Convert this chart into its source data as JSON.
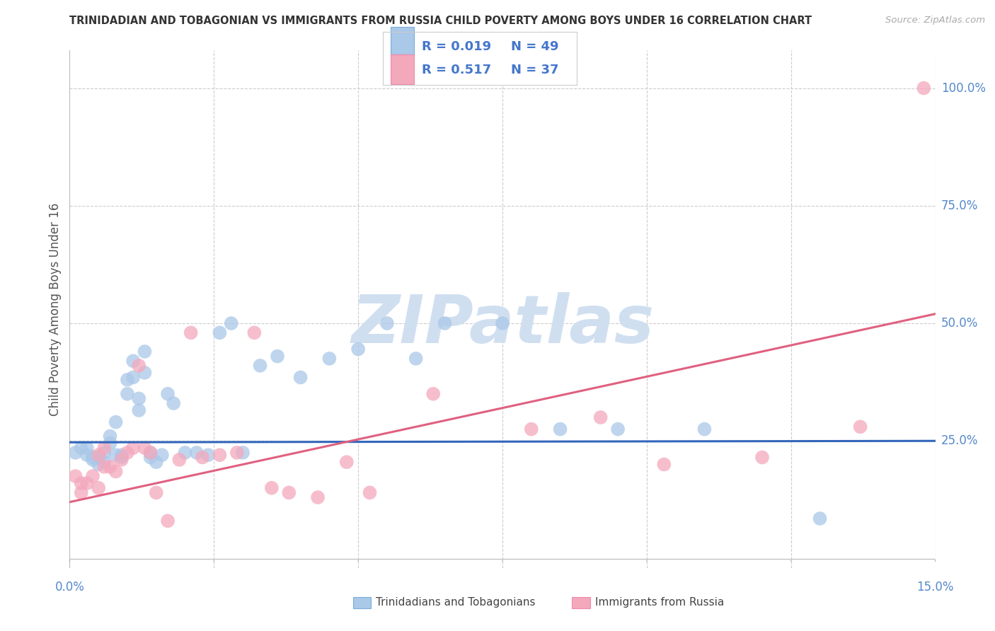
{
  "title": "TRINIDADIAN AND TOBAGONIAN VS IMMIGRANTS FROM RUSSIA CHILD POVERTY AMONG BOYS UNDER 16 CORRELATION CHART",
  "source": "Source: ZipAtlas.com",
  "ylabel": "Child Poverty Among Boys Under 16",
  "xlim": [
    0.0,
    0.15
  ],
  "ylim": [
    -0.02,
    1.08
  ],
  "ytick_vals": [
    0.0,
    0.25,
    0.5,
    0.75,
    1.0
  ],
  "ytick_labels": [
    "",
    "25.0%",
    "50.0%",
    "75.0%",
    "100.0%"
  ],
  "xtick_vals": [
    0.0,
    0.025,
    0.05,
    0.075,
    0.1,
    0.125,
    0.15
  ],
  "xtick_labels": [
    "0.0%",
    "",
    "",
    "",
    "",
    "",
    "15.0%"
  ],
  "legend_r_blue": "0.019",
  "legend_n_blue": "49",
  "legend_r_pink": "0.517",
  "legend_n_pink": "37",
  "blue_color": "#aac8e8",
  "blue_edge_color": "#7aadda",
  "pink_color": "#f4a8bc",
  "pink_edge_color": "#ee8aaa",
  "line_blue_color": "#3366bb",
  "line_pink_color": "#e06080",
  "watermark_color": "#d0dff0",
  "background_color": "#ffffff",
  "grid_color": "#cccccc",
  "title_color": "#333333",
  "source_color": "#aaaaaa",
  "axis_label_color": "#555555",
  "tick_label_color": "#5588cc",
  "legend_text_color": "#4477cc",
  "blue_scatter_x": [
    0.001,
    0.002,
    0.003,
    0.003,
    0.004,
    0.004,
    0.005,
    0.005,
    0.006,
    0.006,
    0.007,
    0.007,
    0.008,
    0.008,
    0.009,
    0.009,
    0.01,
    0.01,
    0.011,
    0.011,
    0.012,
    0.012,
    0.013,
    0.013,
    0.014,
    0.014,
    0.015,
    0.016,
    0.017,
    0.018,
    0.02,
    0.022,
    0.024,
    0.026,
    0.028,
    0.03,
    0.033,
    0.036,
    0.04,
    0.045,
    0.05,
    0.055,
    0.06,
    0.065,
    0.075,
    0.085,
    0.095,
    0.11,
    0.13
  ],
  "blue_scatter_y": [
    0.225,
    0.235,
    0.235,
    0.22,
    0.215,
    0.21,
    0.215,
    0.2,
    0.225,
    0.205,
    0.26,
    0.245,
    0.29,
    0.22,
    0.215,
    0.22,
    0.38,
    0.35,
    0.42,
    0.385,
    0.34,
    0.315,
    0.44,
    0.395,
    0.225,
    0.215,
    0.205,
    0.22,
    0.35,
    0.33,
    0.225,
    0.225,
    0.22,
    0.48,
    0.5,
    0.225,
    0.41,
    0.43,
    0.385,
    0.425,
    0.445,
    0.5,
    0.425,
    0.5,
    0.5,
    0.275,
    0.275,
    0.275,
    0.085
  ],
  "pink_scatter_x": [
    0.001,
    0.002,
    0.002,
    0.003,
    0.004,
    0.005,
    0.005,
    0.006,
    0.006,
    0.007,
    0.008,
    0.009,
    0.01,
    0.011,
    0.012,
    0.013,
    0.014,
    0.015,
    0.017,
    0.019,
    0.021,
    0.023,
    0.026,
    0.029,
    0.032,
    0.035,
    0.038,
    0.043,
    0.048,
    0.052,
    0.063,
    0.08,
    0.092,
    0.103,
    0.12,
    0.137,
    0.148
  ],
  "pink_scatter_y": [
    0.175,
    0.16,
    0.14,
    0.16,
    0.175,
    0.15,
    0.22,
    0.195,
    0.235,
    0.195,
    0.185,
    0.21,
    0.225,
    0.235,
    0.41,
    0.235,
    0.225,
    0.14,
    0.08,
    0.21,
    0.48,
    0.215,
    0.22,
    0.225,
    0.48,
    0.15,
    0.14,
    0.13,
    0.205,
    0.14,
    0.35,
    0.275,
    0.3,
    0.2,
    0.215,
    0.28,
    1.0
  ],
  "blue_line_x": [
    0.0,
    0.15
  ],
  "blue_line_y": [
    0.247,
    0.25
  ],
  "pink_line_x": [
    0.0,
    0.15
  ],
  "pink_line_y": [
    0.12,
    0.52
  ]
}
